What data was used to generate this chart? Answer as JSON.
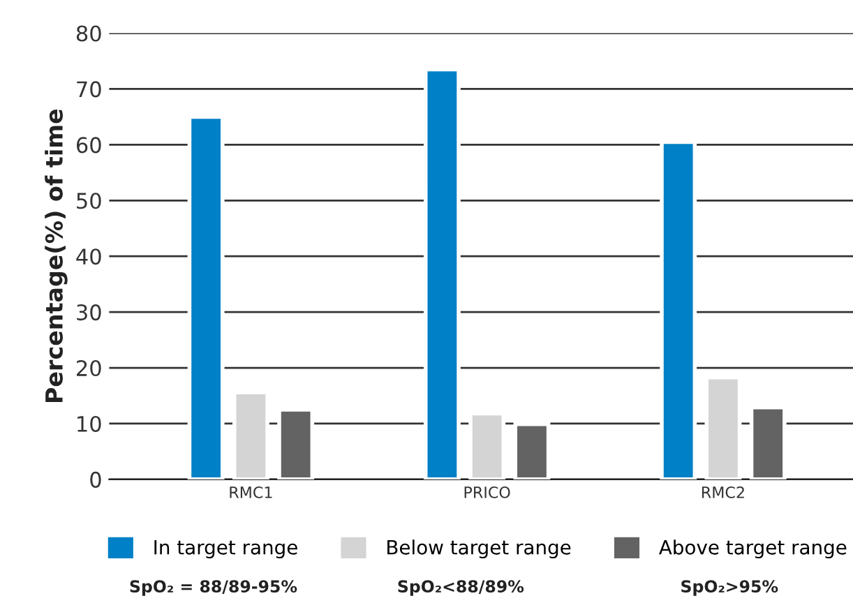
{
  "chart_data": {
    "type": "bar",
    "ylabel": "Percentage(%) of time",
    "categories": [
      "RMC1",
      "PRICO",
      "RMC2"
    ],
    "series": [
      {
        "name": "In target range",
        "color": "#0080c6",
        "values": [
          65.0,
          73.5,
          60.5
        ]
      },
      {
        "name": "Below target range",
        "color": "#d4d4d4",
        "values": [
          15.6,
          11.8,
          18.3
        ]
      },
      {
        "name": "Above target range",
        "color": "#636363",
        "values": [
          12.5,
          9.9,
          12.9
        ]
      }
    ],
    "ylim": [
      0,
      80
    ],
    "yticks": [
      0,
      10,
      20,
      30,
      40,
      50,
      60,
      70,
      80
    ],
    "grid": "y",
    "legend": "bottom",
    "annotations": [
      "SpO₂ = 88/89-95%",
      "SpO₂<88/89%",
      "SpO₂>95%"
    ]
  }
}
